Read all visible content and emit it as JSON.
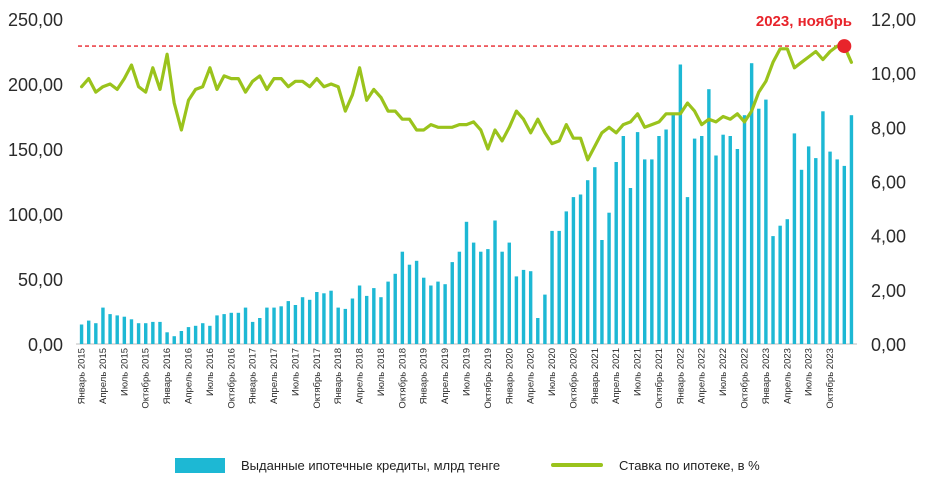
{
  "chart_data": {
    "type": "bar+line",
    "annotation": "2023, ноябрь",
    "left_axis": {
      "min": 0,
      "max": 250,
      "ticks": [
        "0,00",
        "50,00",
        "100,00",
        "150,00",
        "200,00",
        "250,00"
      ]
    },
    "right_axis": {
      "min": 0,
      "max": 12,
      "ticks": [
        "0,00",
        "2,00",
        "4,00",
        "6,00",
        "8,00",
        "10,00",
        "12,00"
      ]
    },
    "reference_line": {
      "value": 11,
      "axis": "right",
      "style": "dashed",
      "color": "#e8242b"
    },
    "x_labels": [
      "Январь 2015",
      "Апрель 2015",
      "Июль 2015",
      "Октябрь 2015",
      "Январь 2016",
      "Апрель 2016",
      "Июль 2016",
      "Октябрь 2016",
      "Январь 2017",
      "Апрель 2017",
      "Июль 2017",
      "Октябрь 2017",
      "Январь 2018",
      "Апрель 2018",
      "Июль 2018",
      "Октябрь 2018",
      "Январь 2019",
      "Апрель 2019",
      "Июль 2019",
      "Октябрь 2019",
      "Январь 2020",
      "Апрель 2020",
      "Июль 2020",
      "Октябрь 2020",
      "Январь 2021",
      "Апрель 2021",
      "Июль 2021",
      "Октябрь 2021",
      "Январь 2022",
      "Апрель 2022",
      "Июль 2022",
      "Октябрь 2022",
      "Январь 2023",
      "Апрель 2023",
      "Июль 2023",
      "Октябрь 2023"
    ],
    "series": [
      {
        "name": "Выданные ипотечные кредиты, млрд тенге",
        "type": "bar",
        "axis": "left",
        "color": "#1db8d4",
        "values": [
          15,
          18,
          16,
          28,
          23,
          22,
          21,
          19,
          16,
          16,
          17,
          17,
          9,
          6,
          10,
          13,
          14,
          16,
          14,
          22,
          23,
          24,
          24,
          28,
          17,
          20,
          28,
          28,
          29,
          33,
          30,
          36,
          34,
          40,
          39,
          41,
          28,
          27,
          35,
          45,
          37,
          43,
          36,
          48,
          54,
          71,
          61,
          64,
          51,
          45,
          48,
          46,
          63,
          71,
          94,
          78,
          71,
          73,
          95,
          71,
          78,
          52,
          57,
          56,
          20,
          38,
          87,
          87,
          102,
          113,
          115,
          126,
          136,
          80,
          101,
          140,
          160,
          120,
          163,
          142,
          142,
          160,
          165,
          178,
          215,
          113,
          158,
          160,
          196,
          145,
          161,
          160,
          150,
          176,
          216,
          181,
          188,
          83,
          91,
          96,
          162,
          134,
          152,
          143,
          179,
          148,
          142,
          137,
          176
        ]
      },
      {
        "name": "Ставка по ипотеке, в %",
        "type": "line",
        "axis": "right",
        "color": "#9ac31c",
        "values": [
          9.5,
          9.8,
          9.3,
          9.5,
          9.6,
          9.4,
          9.8,
          10.3,
          9.5,
          9.3,
          10.2,
          9.4,
          10.7,
          8.9,
          7.9,
          9.0,
          9.4,
          9.5,
          10.2,
          9.4,
          9.9,
          9.8,
          9.8,
          9.3,
          9.7,
          9.9,
          9.4,
          9.8,
          9.8,
          9.5,
          9.7,
          9.7,
          9.5,
          9.8,
          9.5,
          9.6,
          9.5,
          8.6,
          9.2,
          10.2,
          9.0,
          9.4,
          9.1,
          8.6,
          8.6,
          8.3,
          8.3,
          7.9,
          7.9,
          8.1,
          8.0,
          8.0,
          8.0,
          8.1,
          8.1,
          8.2,
          7.9,
          7.2,
          7.9,
          7.5,
          8.0,
          8.6,
          8.3,
          7.8,
          8.3,
          7.8,
          7.4,
          7.5,
          8.1,
          7.6,
          7.6,
          6.8,
          7.3,
          7.8,
          8.0,
          7.8,
          8.1,
          8.2,
          8.5,
          8.0,
          8.1,
          8.2,
          8.5,
          8.5,
          8.5,
          8.9,
          8.6,
          8.1,
          8.3,
          8.2,
          8.4,
          8.3,
          8.5,
          8.2,
          8.6,
          9.3,
          9.7,
          10.4,
          10.9,
          10.9,
          10.2,
          10.4,
          10.6,
          10.8,
          10.5,
          10.8,
          11.0,
          11.0,
          10.4
        ]
      }
    ],
    "legend_position": "bottom"
  }
}
